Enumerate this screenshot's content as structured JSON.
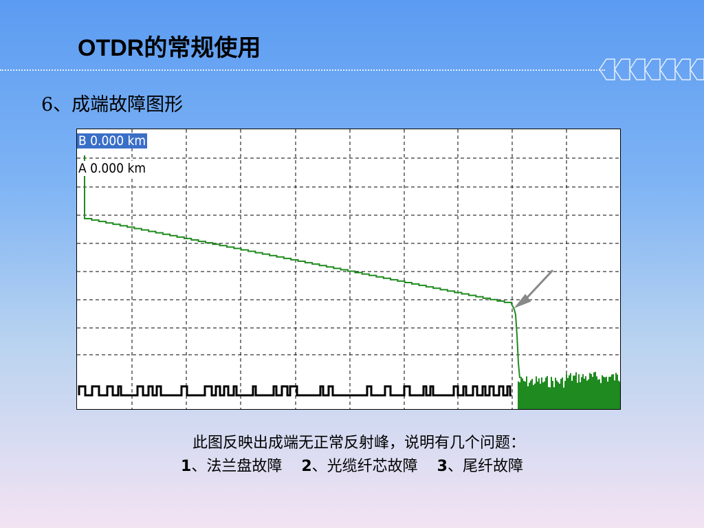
{
  "slide": {
    "title": "OTDR的常规使用",
    "subtitle": "6、成端故障图形"
  },
  "trace": {
    "marker_b": "B 0.000 km",
    "marker_a": "A 0.000 km",
    "trace_color": "#1f8a1f",
    "marker_bg": "#3a6fc8"
  },
  "caption": {
    "line1": "此图反映出成端无正常反射峰，说明有几个问题：",
    "item1_num": "1",
    "item1_text": "、法兰盘故障",
    "item2_num": "2",
    "item2_text": "、光缆纤芯故障",
    "item3_num": "3",
    "item3_text": "、尾纤故障"
  }
}
